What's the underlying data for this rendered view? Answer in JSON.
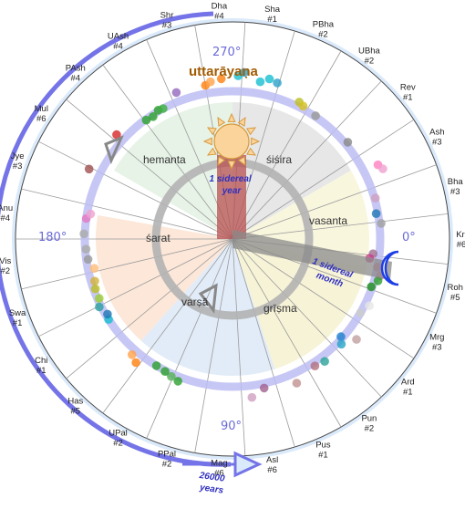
{
  "colors": {
    "outer_band": "#dbeafb",
    "precession_arrow": "#7474e8",
    "ecliptic_ring": "#bdbdf3",
    "season_ring": "#b3b3b3",
    "sun_fill": "#fad49b",
    "sun_stroke": "#d69a3c",
    "moon": "#1f3fe6",
    "sector_sisira": "#e3e3e3",
    "sector_vasanta": "#f8f5d8",
    "sector_grisma": "#f6f1d0",
    "sector_varsa": "#dde9f7",
    "sector_sarat": "#fbe3d2",
    "sector_hemanta": "#e3f1e3"
  },
  "nakshatras": [
    {
      "label": "Kri",
      "num": "#6"
    },
    {
      "label": "Bha",
      "num": "#3"
    },
    {
      "label": "Ash",
      "num": "#3"
    },
    {
      "label": "Rev",
      "num": "#1"
    },
    {
      "label": "UBha",
      "num": "#2"
    },
    {
      "label": "PBha",
      "num": "#2"
    },
    {
      "label": "Sha",
      "num": "#1"
    },
    {
      "label": "Dha",
      "num": "#4"
    },
    {
      "label": "Shr",
      "num": "#3"
    },
    {
      "label": "UAsh",
      "num": "#4"
    },
    {
      "label": "PAsh",
      "num": "#4"
    },
    {
      "label": "Mul",
      "num": "#6"
    },
    {
      "label": "Jye",
      "num": "#3"
    },
    {
      "label": "Anu",
      "num": "#4"
    },
    {
      "label": "Vis",
      "num": "#2"
    },
    {
      "label": "Swa",
      "num": "#1"
    },
    {
      "label": "Chi",
      "num": "#1"
    },
    {
      "label": "Has",
      "num": "#5"
    },
    {
      "label": "UPal",
      "num": "#2"
    },
    {
      "label": "PPal",
      "num": "#2"
    },
    {
      "label": "Mag",
      "num": "#6"
    },
    {
      "label": "Asl",
      "num": "#6"
    },
    {
      "label": "Pus",
      "num": "#1"
    },
    {
      "label": "Pun",
      "num": "#2"
    },
    {
      "label": "Ard",
      "num": "#1"
    },
    {
      "label": "Mrg",
      "num": "#3"
    },
    {
      "label": "Roh",
      "num": "#5"
    }
  ],
  "seasons": {
    "sisira": "śiśira",
    "vasanta": "vasanta",
    "grisma": "grīṣma",
    "varsa": "varṣā",
    "sarat": "śarat",
    "hemanta": "hemanta"
  },
  "degrees": {
    "top": "270°",
    "right": "0°",
    "bottom": "90°",
    "left": "180°"
  },
  "title": "uttarāyaṇa",
  "sidereal_year": [
    "1 sidereal",
    "year"
  ],
  "sidereal_month": [
    "1 sidereal",
    "month"
  ],
  "precession": [
    "26000",
    "years"
  ]
}
